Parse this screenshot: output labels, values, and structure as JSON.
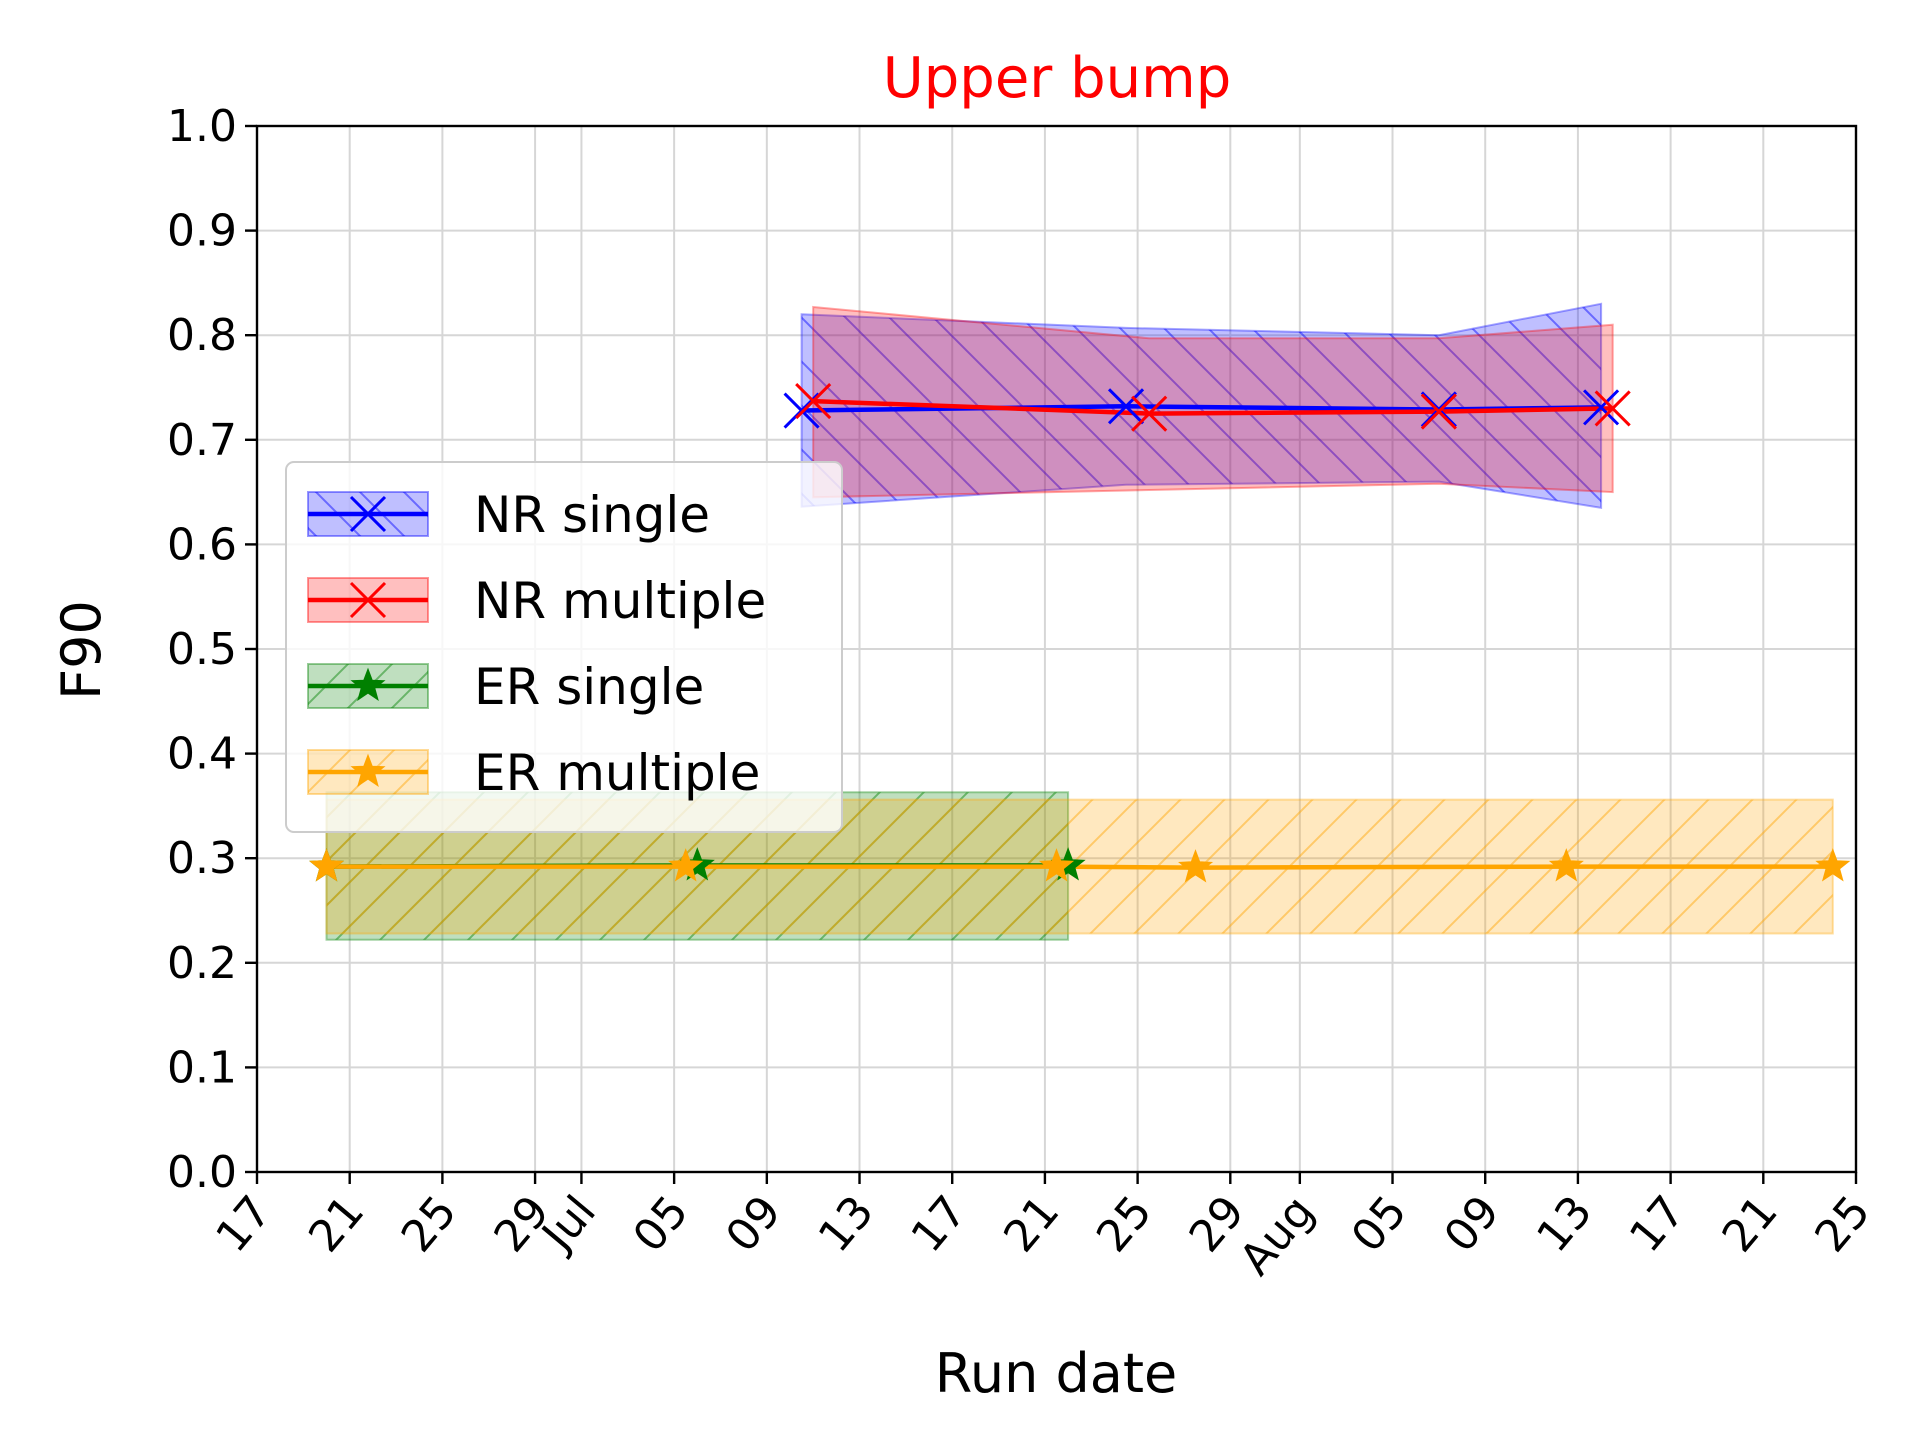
{
  "chart_data": {
    "type": "line",
    "title": "Upper bump",
    "title_color": "#ff0000",
    "xlabel": "Run date",
    "ylabel": "F90",
    "ylim": [
      0,
      1
    ],
    "xlim": [
      "2019-06-17",
      "2019-08-25"
    ],
    "grid": true,
    "legend_position": "center-left",
    "yticks": [
      "0.0",
      "0.1",
      "0.2",
      "0.3",
      "0.4",
      "0.5",
      "0.6",
      "0.7",
      "0.8",
      "0.9",
      "1.0"
    ],
    "xticks": [
      {
        "date": "2019-06-17",
        "label": "17"
      },
      {
        "date": "2019-06-21",
        "label": "21"
      },
      {
        "date": "2019-06-25",
        "label": "25"
      },
      {
        "date": "2019-06-29",
        "label": "29"
      },
      {
        "date": "2019-07-01",
        "label": "Jul"
      },
      {
        "date": "2019-07-05",
        "label": "05"
      },
      {
        "date": "2019-07-09",
        "label": "09"
      },
      {
        "date": "2019-07-13",
        "label": "13"
      },
      {
        "date": "2019-07-17",
        "label": "17"
      },
      {
        "date": "2019-07-21",
        "label": "21"
      },
      {
        "date": "2019-07-25",
        "label": "25"
      },
      {
        "date": "2019-07-29",
        "label": "29"
      },
      {
        "date": "2019-08-01",
        "label": "Aug"
      },
      {
        "date": "2019-08-05",
        "label": "05"
      },
      {
        "date": "2019-08-09",
        "label": "09"
      },
      {
        "date": "2019-08-13",
        "label": "13"
      },
      {
        "date": "2019-08-17",
        "label": "17"
      },
      {
        "date": "2019-08-21",
        "label": "21"
      },
      {
        "date": "2019-08-25",
        "label": "25"
      }
    ],
    "series": [
      {
        "name": "NR single",
        "color": "#0000ff",
        "marker": "x",
        "hatch": "back",
        "points": [
          {
            "x": "2019-07-10T12:00",
            "y": 0.728,
            "lo": 0.636,
            "hi": 0.82
          },
          {
            "x": "2019-07-24T12:00",
            "y": 0.732,
            "lo": 0.657,
            "hi": 0.807
          },
          {
            "x": "2019-08-07",
            "y": 0.729,
            "lo": 0.66,
            "hi": 0.8
          },
          {
            "x": "2019-08-14",
            "y": 0.731,
            "lo": 0.635,
            "hi": 0.83
          }
        ]
      },
      {
        "name": "NR multiple",
        "color": "#ff0000",
        "marker": "x",
        "hatch": "none",
        "points": [
          {
            "x": "2019-07-11",
            "y": 0.737,
            "lo": 0.645,
            "hi": 0.827
          },
          {
            "x": "2019-07-25T12:00",
            "y": 0.725,
            "lo": 0.652,
            "hi": 0.797
          },
          {
            "x": "2019-08-07",
            "y": 0.727,
            "lo": 0.658,
            "hi": 0.797
          },
          {
            "x": "2019-08-14T12:00",
            "y": 0.73,
            "lo": 0.65,
            "hi": 0.81
          }
        ]
      },
      {
        "name": "ER single",
        "color": "#008000",
        "marker": "star",
        "hatch": "forward",
        "points": [
          {
            "x": "2019-06-20",
            "y": 0.292,
            "lo": 0.222,
            "hi": 0.363
          },
          {
            "x": "2019-07-06",
            "y": 0.293,
            "lo": 0.222,
            "hi": 0.363
          },
          {
            "x": "2019-07-22",
            "y": 0.293,
            "lo": 0.222,
            "hi": 0.363
          }
        ]
      },
      {
        "name": "ER multiple",
        "color": "#ffa500",
        "marker": "star",
        "hatch": "forward",
        "points": [
          {
            "x": "2019-06-20",
            "y": 0.292,
            "lo": 0.228,
            "hi": 0.356
          },
          {
            "x": "2019-07-05T12:00",
            "y": 0.292,
            "lo": 0.228,
            "hi": 0.356
          },
          {
            "x": "2019-07-21T12:00",
            "y": 0.292,
            "lo": 0.228,
            "hi": 0.356
          },
          {
            "x": "2019-07-27T12:00",
            "y": 0.291,
            "lo": 0.228,
            "hi": 0.356
          },
          {
            "x": "2019-08-12T12:00",
            "y": 0.292,
            "lo": 0.228,
            "hi": 0.356
          },
          {
            "x": "2019-08-24",
            "y": 0.292,
            "lo": 0.228,
            "hi": 0.356
          }
        ]
      }
    ]
  }
}
